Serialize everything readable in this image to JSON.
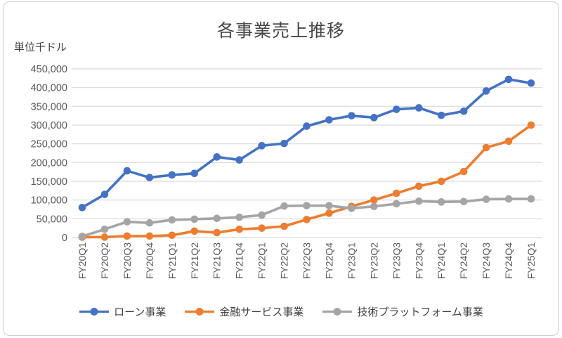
{
  "chart_data": {
    "type": "line",
    "title": "各事業売上推移",
    "unit_label": "単位千ドル",
    "categories": [
      "FY20Q1",
      "FY20Q2",
      "FY20Q3",
      "FY20Q4",
      "FY21Q1",
      "FY21Q2",
      "FY21Q3",
      "FY21Q4",
      "FY22Q1",
      "FY22Q2",
      "FY22Q3",
      "FY22Q4",
      "FY23Q1",
      "FY23Q2",
      "FY23Q3",
      "FY23Q4",
      "FY24Q1",
      "FY24Q2",
      "FY24Q3",
      "FY24Q4",
      "FY25Q1"
    ],
    "series": [
      {
        "name": "ローン事業",
        "color": "#4472C4",
        "values": [
          80000,
          115000,
          178000,
          160000,
          167000,
          171000,
          215000,
          207000,
          245000,
          251000,
          297000,
          314000,
          325000,
          320000,
          342000,
          346000,
          326000,
          337000,
          391000,
          422000,
          412000
        ]
      },
      {
        "name": "金融サービス事業",
        "color": "#ED7D31",
        "values": [
          1000,
          1000,
          4000,
          4000,
          6000,
          17000,
          13000,
          22000,
          25000,
          30000,
          48000,
          65000,
          83000,
          100000,
          118000,
          137000,
          150000,
          176000,
          240000,
          257000,
          300000
        ]
      },
      {
        "name": "技術プラットフォーム事業",
        "color": "#A5A5A5",
        "values": [
          3000,
          22000,
          42000,
          39000,
          47000,
          49000,
          51000,
          54000,
          60000,
          84000,
          85000,
          85000,
          78000,
          83000,
          90000,
          97000,
          95000,
          96000,
          102000,
          103000,
          103000
        ]
      }
    ],
    "ylim": [
      0,
      450000
    ],
    "ytick_step": 50000,
    "ytick_labels": [
      "0",
      "50,000",
      "100,000",
      "150,000",
      "200,000",
      "250,000",
      "300,000",
      "350,000",
      "400,000",
      "450,000"
    ],
    "grid": true,
    "legend_position": "bottom",
    "colors": {
      "gridline": "#D9D9D9",
      "axis_text": "#595959",
      "title_text": "#484848",
      "border": "#CFCFCF",
      "background": "#FFFFFF"
    }
  }
}
